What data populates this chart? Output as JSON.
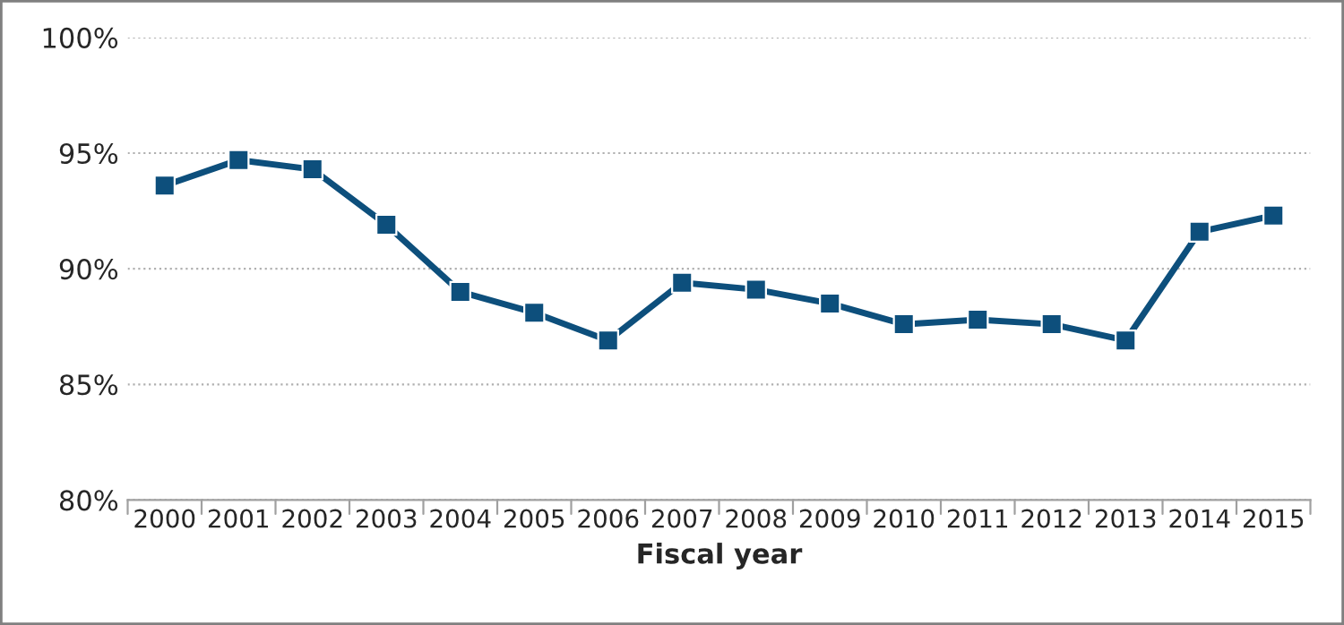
{
  "chart_data": {
    "type": "line",
    "xlabel": "Fiscal year",
    "categories": [
      "2000",
      "2001",
      "2002",
      "2003",
      "2004",
      "2005",
      "2006",
      "2007",
      "2008",
      "2009",
      "2010",
      "2011",
      "2012",
      "2013",
      "2014",
      "2015"
    ],
    "series": [
      {
        "color": "#0d4f7c",
        "values": [
          93.6,
          94.7,
          94.3,
          91.9,
          89.0,
          88.1,
          86.9,
          89.4,
          89.1,
          88.5,
          87.6,
          87.8,
          87.6,
          86.9,
          91.6,
          92.3
        ]
      }
    ],
    "ylim": [
      80,
      100
    ],
    "yticks": [
      {
        "value": 80,
        "label": "80%"
      },
      {
        "value": 85,
        "label": "85%"
      },
      {
        "value": 90,
        "label": "90%"
      },
      {
        "value": 95,
        "label": "95%"
      },
      {
        "value": 100,
        "label": "100%"
      }
    ],
    "grid": "y",
    "marker": "square",
    "line_style": "solid"
  }
}
